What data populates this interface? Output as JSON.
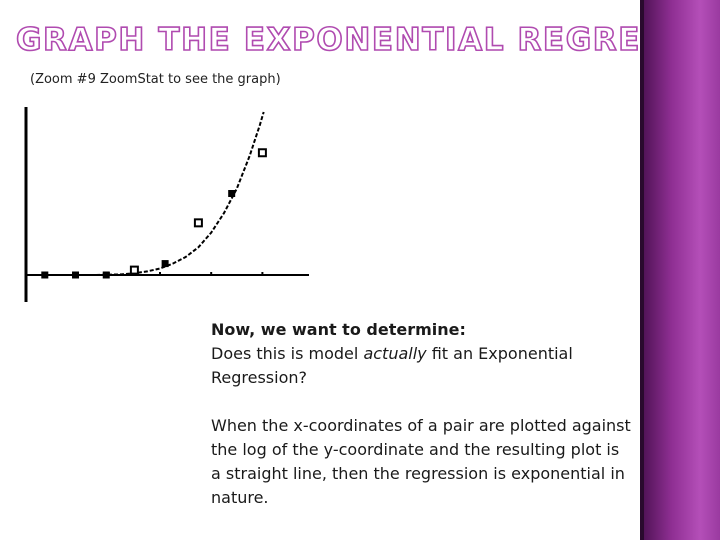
{
  "slide": {
    "title": "GRAPH THE EXPONENTIAL REGRESSION",
    "subtitle": "(Zoom #9 ZoomStat to see the graph)",
    "body": {
      "lead": "Now, we want to determine:",
      "question_before": "Does this is model ",
      "question_emphasis": "actually",
      "question_after": " fit an Exponential Regression?",
      "explanation": "When the x-coordinates of a pair are plotted against the log of the y-coordinate and the resulting plot is a straight line, then the regression is exponential in nature."
    }
  },
  "colors": {
    "title_outline": "#b04bb0",
    "side_panel": "#9a3aa0",
    "plot_ink": "#000000"
  },
  "chart_data": {
    "type": "scatter",
    "title": "",
    "xlabel": "",
    "ylabel": "",
    "xlim": [
      0,
      10
    ],
    "ylim": [
      0,
      10
    ],
    "grid": false,
    "legend": "none",
    "x_ticks": [
      3,
      5,
      7,
      9
    ],
    "series": [
      {
        "marker": "hollow-square",
        "points": [
          {
            "x": 4,
            "y": 0.3
          },
          {
            "x": 6.5,
            "y": 3.2
          },
          {
            "x": 9,
            "y": 7.5
          }
        ]
      },
      {
        "marker": "filled-square",
        "points": [
          {
            "x": 0.5,
            "y": 0
          },
          {
            "x": 1.7,
            "y": 0
          },
          {
            "x": 2.9,
            "y": 0
          },
          {
            "x": 5.2,
            "y": 0.7
          },
          {
            "x": 7.8,
            "y": 5
          }
        ]
      }
    ],
    "regression_curve": {
      "type": "exponential",
      "style": "dashed",
      "points": [
        {
          "x": 2.5,
          "y": 0
        },
        {
          "x": 3,
          "y": 0.02
        },
        {
          "x": 3.5,
          "y": 0.04
        },
        {
          "x": 4,
          "y": 0.11
        },
        {
          "x": 4.5,
          "y": 0.22
        },
        {
          "x": 5,
          "y": 0.4
        },
        {
          "x": 5.5,
          "y": 0.7
        },
        {
          "x": 6,
          "y": 1.1
        },
        {
          "x": 6.5,
          "y": 1.7
        },
        {
          "x": 7,
          "y": 2.6
        },
        {
          "x": 7.5,
          "y": 3.8
        },
        {
          "x": 8,
          "y": 5.3
        },
        {
          "x": 8.5,
          "y": 7.3
        },
        {
          "x": 8.9,
          "y": 9.2
        },
        {
          "x": 9.05,
          "y": 10
        }
      ]
    }
  }
}
